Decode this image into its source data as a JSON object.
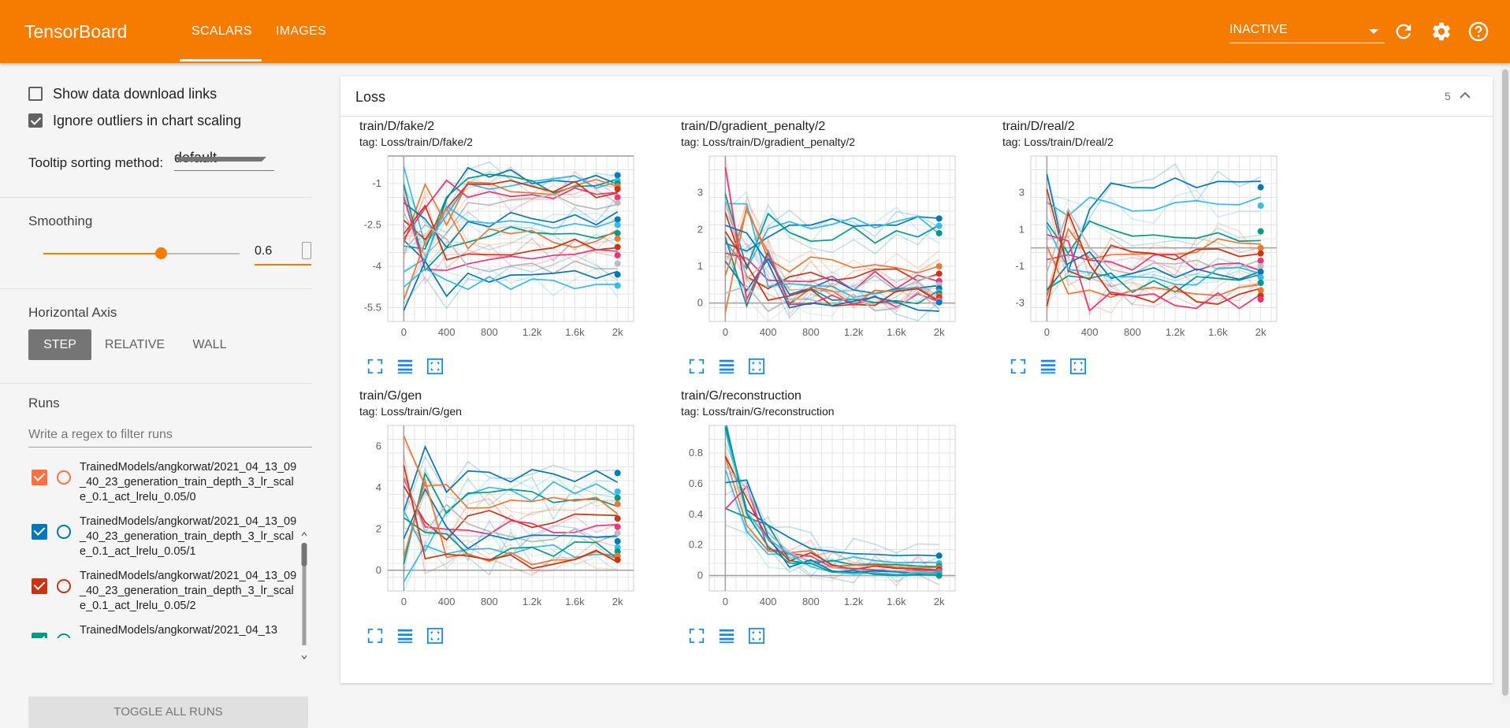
{
  "header": {
    "brand": "TensorBoard",
    "tabs": [
      "SCALARS",
      "IMAGES"
    ],
    "active_tab": "SCALARS",
    "run_selector": "INACTIVE",
    "icons": [
      "refresh-icon",
      "settings-icon",
      "help-icon"
    ],
    "color": "#f57c00"
  },
  "sidebar": {
    "show_download_links": {
      "label": "Show data download links",
      "checked": false
    },
    "ignore_outliers": {
      "label": "Ignore outliers in chart scaling",
      "checked": true
    },
    "tooltip": {
      "label": "Tooltip sorting method:",
      "value": "default"
    },
    "smoothing": {
      "label": "Smoothing",
      "value": "0.6",
      "fraction": 0.6
    },
    "horizontal_axis": {
      "label": "Horizontal Axis",
      "options": [
        "STEP",
        "RELATIVE",
        "WALL"
      ],
      "selected": "STEP"
    },
    "runs": {
      "label": "Runs",
      "filter_placeholder": "Write a regex to filter runs",
      "items": [
        {
          "name": "TrainedModels/angkorwat/2021_04_13_09_40_23_generation_train_depth_3_lr_scale_0.1_act_lrelu_0.05/0",
          "color": "#ff7043",
          "checked": true
        },
        {
          "name": "TrainedModels/angkorwat/2021_04_13_09_40_23_generation_train_depth_3_lr_scale_0.1_act_lrelu_0.05/1",
          "color": "#0077bb",
          "checked": true
        },
        {
          "name": "TrainedModels/angkorwat/2021_04_13_09_40_23_generation_train_depth_3_lr_scale_0.1_act_lrelu_0.05/2",
          "color": "#cc3311",
          "checked": true
        },
        {
          "name": "TrainedModels/angkorwat/2021_04_13",
          "color": "#009988",
          "checked": true
        }
      ],
      "toggle_all": "TOGGLE ALL RUNS"
    }
  },
  "card": {
    "title": "Loss",
    "count": "5"
  },
  "chart_data": [
    {
      "type": "line",
      "title": "train/D/fake/2",
      "tag": "tag: Loss/train/D/fake/2",
      "x_ticks": [
        "0",
        "400",
        "800",
        "1.2k",
        "1.6k",
        "2k"
      ],
      "y_ticks": [
        "-1",
        "-2.5",
        "-4",
        "-5.5"
      ],
      "y_tick_values": [
        -1,
        -2.5,
        -4,
        -5.5
      ],
      "xlim": [
        -150,
        2150
      ],
      "ylim": [
        -6.0,
        0.0
      ],
      "x": [
        0,
        200,
        400,
        600,
        800,
        1000,
        1200,
        1400,
        1600,
        1800,
        2000
      ],
      "series_end_values": [
        -0.7,
        -0.9,
        -1.0,
        -1.1,
        -1.2,
        -1.5,
        -1.7,
        -2.3,
        -2.5,
        -2.8,
        -3.0,
        -3.3,
        -3.6,
        -3.9,
        -4.3,
        -4.7
      ]
    },
    {
      "type": "line",
      "title": "train/D/gradient_penalty/2",
      "tag": "tag: Loss/train/D/gradient_penalty/2",
      "x_ticks": [
        "0",
        "400",
        "800",
        "1.2k",
        "1.6k",
        "2k"
      ],
      "y_ticks": [
        "0",
        "1",
        "2",
        "3"
      ],
      "y_tick_values": [
        0,
        1,
        2,
        3
      ],
      "xlim": [
        -150,
        2150
      ],
      "ylim": [
        -0.5,
        4.0
      ],
      "x": [
        0,
        200,
        400,
        600,
        800,
        1000,
        1200,
        1400,
        1600,
        1800,
        2000
      ],
      "series_end_values": [
        2.3,
        2.1,
        1.9,
        1.0,
        0.8,
        0.6,
        0.5,
        0.4,
        0.3,
        0.25,
        0.2,
        0.15,
        0.1,
        0.05,
        0.02
      ]
    },
    {
      "type": "line",
      "title": "train/D/real/2",
      "tag": "tag: Loss/train/D/real/2",
      "x_ticks": [
        "0",
        "400",
        "800",
        "1.2k",
        "1.6k",
        "2k"
      ],
      "y_ticks": [
        "3",
        "1",
        "-1",
        "-3"
      ],
      "y_tick_values": [
        3,
        1,
        -1,
        -3
      ],
      "xlim": [
        -150,
        2150
      ],
      "ylim": [
        -4.0,
        5.0
      ],
      "x": [
        0,
        200,
        400,
        600,
        800,
        1000,
        1200,
        1400,
        1600,
        1800,
        2000
      ],
      "series_end_values": [
        3.3,
        2.3,
        0.9,
        0.0,
        -0.3,
        -0.7,
        -1.0,
        -1.3,
        -1.6,
        -1.9,
        -2.3,
        -2.6,
        -2.8
      ]
    },
    {
      "type": "line",
      "title": "train/G/gen",
      "tag": "tag: Loss/train/G/gen",
      "x_ticks": [
        "0",
        "400",
        "800",
        "1.2k",
        "1.6k",
        "2k"
      ],
      "y_ticks": [
        "0",
        "2",
        "4",
        "6"
      ],
      "y_tick_values": [
        0,
        2,
        4,
        6
      ],
      "xlim": [
        -150,
        2150
      ],
      "ylim": [
        -1.0,
        7.0
      ],
      "x": [
        0,
        200,
        400,
        600,
        800,
        1000,
        1200,
        1400,
        1600,
        1800,
        2000
      ],
      "series_end_values": [
        4.7,
        3.8,
        3.5,
        3.2,
        2.5,
        2.1,
        1.8,
        1.4,
        1.1,
        0.9,
        0.7,
        0.5
      ]
    },
    {
      "type": "line",
      "title": "train/G/reconstruction",
      "tag": "tag: Loss/train/G/reconstruction",
      "x_ticks": [
        "0",
        "400",
        "800",
        "1.2k",
        "1.6k",
        "2k"
      ],
      "y_ticks": [
        "0",
        "0.2",
        "0.4",
        "0.6",
        "0.8"
      ],
      "y_tick_values": [
        0,
        0.2,
        0.4,
        0.6,
        0.8
      ],
      "xlim": [
        -150,
        2150
      ],
      "ylim": [
        -0.1,
        0.98
      ],
      "x": [
        0,
        200,
        400,
        600,
        800,
        1000,
        1200,
        1400,
        1600,
        1800,
        2000
      ],
      "series_end_values": [
        0.13,
        0.08,
        0.06,
        0.05,
        0.04,
        0.03,
        0.02,
        0.015,
        0.01,
        0.0
      ]
    }
  ],
  "chart_controls": [
    "fullscreen-icon",
    "list-icon",
    "fit-domain-icon"
  ],
  "series_colors": [
    "#0077bb",
    "#33bbee",
    "#009988",
    "#ee7733",
    "#cc3311",
    "#ee3377",
    "#bbbbbb"
  ]
}
